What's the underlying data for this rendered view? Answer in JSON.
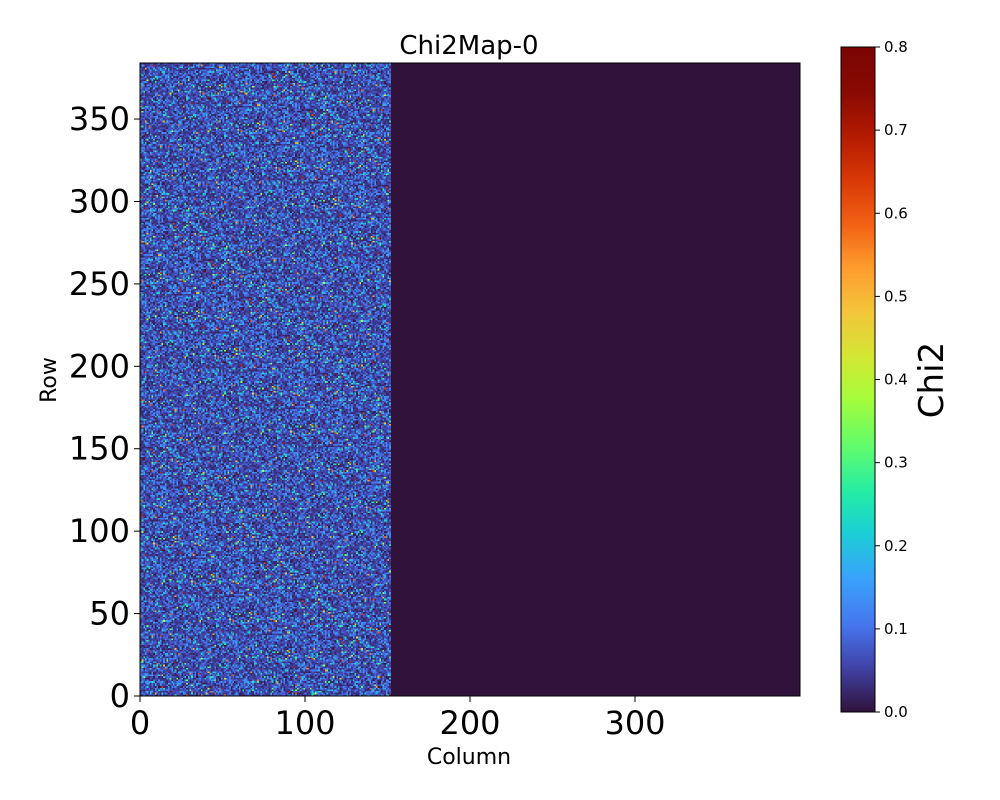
{
  "chart_data": {
    "type": "heatmap",
    "title": "Chi2Map-0",
    "xlabel": "Column",
    "ylabel": "Row",
    "xlim": [
      0,
      400
    ],
    "ylim": [
      0,
      384
    ],
    "x_ticks": [
      0,
      100,
      200,
      300
    ],
    "y_ticks": [
      0,
      50,
      100,
      150,
      200,
      250,
      300,
      350
    ],
    "data_columns": [
      0,
      152
    ],
    "empty_value": 0.0,
    "typical_value": 0.09,
    "value_range": [
      0.0,
      0.8
    ],
    "colormap": "turbo",
    "colorbar": {
      "label": "Chi2",
      "range": [
        0.0,
        0.8
      ],
      "ticks": [
        "0.0",
        "0.1",
        "0.2",
        "0.3",
        "0.4",
        "0.5",
        "0.6",
        "0.7",
        "0.8"
      ],
      "position": "right"
    },
    "grid": false
  },
  "colors": {
    "empty_region": "#30123b",
    "typical_noise": "#3e62cf"
  }
}
